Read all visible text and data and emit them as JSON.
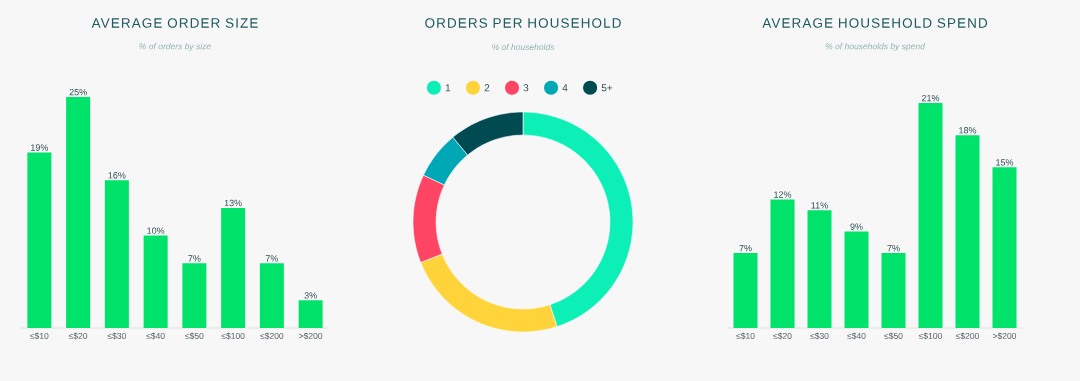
{
  "chart_data": [
    {
      "type": "bar",
      "title": "AVERAGE ORDER SIZE",
      "subtitle": "% of orders by size",
      "categories": [
        "≤$10",
        "≤$20",
        "≤$30",
        "≤$40",
        "≤$50",
        "≤$100",
        "≤$200",
        ">$200"
      ],
      "values": [
        19,
        25,
        16,
        10,
        7,
        13,
        7,
        3
      ],
      "value_labels": [
        "19%",
        "25%",
        "16%",
        "10%",
        "7%",
        "13%",
        "7%",
        "3%"
      ],
      "color": "#00e36b"
    },
    {
      "type": "donut",
      "title": "ORDERS PER HOUSEHOLD",
      "subtitle": "% of households",
      "categories": [
        "1",
        "2",
        "3",
        "4",
        "5+"
      ],
      "values": [
        45,
        24,
        13,
        7,
        11
      ],
      "colors": [
        "#0cefb7",
        "#ffd43b",
        "#ff4563",
        "#00a8b5",
        "#004a52"
      ],
      "legend": "top"
    },
    {
      "type": "bar",
      "title": "AVERAGE HOUSEHOLD SPEND",
      "subtitle": "% of households by spend",
      "categories": [
        "≤$10",
        "≤$20",
        "≤$30",
        "≤$40",
        "≤$50",
        "≤$100",
        "≤$200",
        ">$200"
      ],
      "values": [
        7,
        12,
        11,
        9,
        7,
        21,
        18,
        15
      ],
      "value_labels": [
        "7%",
        "12%",
        "11%",
        "9%",
        "7%",
        "21%",
        "18%",
        "15%"
      ],
      "color": "#00e36b"
    }
  ]
}
